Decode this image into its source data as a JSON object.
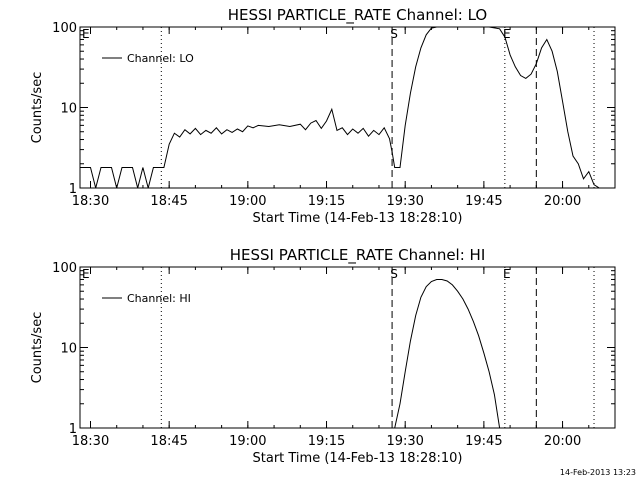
{
  "chart_data": [
    {
      "type": "line",
      "title": "HESSI PARTICLE_RATE Channel: LO",
      "xlabel": "Start Time (14-Feb-13 18:28:10)",
      "ylabel": "Counts/sec",
      "y_scale": "log",
      "xlim": [
        "18:28",
        "20:10"
      ],
      "ylim": [
        1,
        100
      ],
      "x_ticks": [
        "18:30",
        "18:45",
        "19:00",
        "19:15",
        "19:30",
        "19:45",
        "20:00"
      ],
      "y_ticks": [
        "1",
        "10",
        "100"
      ],
      "legend": "left-top",
      "series": [
        {
          "name": "Channel: LO",
          "color": "#000000",
          "points": [
            [
              "18:28",
              1.8
            ],
            [
              "18:30",
              1.8
            ],
            [
              "18:31",
              1.0
            ],
            [
              "18:32",
              1.8
            ],
            [
              "18:34",
              1.8
            ],
            [
              "18:35",
              1.0
            ],
            [
              "18:36",
              1.8
            ],
            [
              "18:38",
              1.8
            ],
            [
              "18:39",
              1.0
            ],
            [
              "18:40",
              1.8
            ],
            [
              "18:41",
              1.0
            ],
            [
              "18:42",
              1.8
            ],
            [
              "18:44",
              1.8
            ],
            [
              "18:45",
              3.5
            ],
            [
              "18:46",
              4.8
            ],
            [
              "18:47",
              4.3
            ],
            [
              "18:48",
              5.3
            ],
            [
              "18:49",
              4.7
            ],
            [
              "18:50",
              5.5
            ],
            [
              "18:51",
              4.6
            ],
            [
              "18:52",
              5.2
            ],
            [
              "18:53",
              4.8
            ],
            [
              "18:54",
              5.6
            ],
            [
              "18:55",
              4.7
            ],
            [
              "18:56",
              5.3
            ],
            [
              "18:57",
              4.9
            ],
            [
              "18:58",
              5.4
            ],
            [
              "18:59",
              5.0
            ],
            [
              "19:00",
              5.9
            ],
            [
              "19:01",
              5.6
            ],
            [
              "19:02",
              6.0
            ],
            [
              "19:04",
              5.8
            ],
            [
              "19:06",
              6.1
            ],
            [
              "19:08",
              5.8
            ],
            [
              "19:10",
              6.2
            ],
            [
              "19:11",
              5.3
            ],
            [
              "19:12",
              6.4
            ],
            [
              "19:13",
              6.9
            ],
            [
              "19:14",
              5.5
            ],
            [
              "19:15",
              6.8
            ],
            [
              "19:16",
              9.5
            ],
            [
              "19:17",
              5.2
            ],
            [
              "19:18",
              5.6
            ],
            [
              "19:19",
              4.6
            ],
            [
              "19:20",
              5.4
            ],
            [
              "19:21",
              4.8
            ],
            [
              "19:22",
              5.5
            ],
            [
              "19:23",
              4.4
            ],
            [
              "19:24",
              5.2
            ],
            [
              "19:25",
              4.6
            ],
            [
              "19:26",
              5.6
            ],
            [
              "19:27",
              4.1
            ],
            [
              "19:27.5",
              2.8
            ],
            [
              "19:28",
              1.8
            ],
            [
              "19:29",
              1.8
            ],
            [
              "19:30",
              6.0
            ],
            [
              "19:31",
              15.0
            ],
            [
              "19:32",
              32.0
            ],
            [
              "19:33",
              55.0
            ],
            [
              "19:34",
              80.0
            ],
            [
              "19:35",
              97.0
            ],
            [
              "19:36",
              105.0
            ],
            [
              "19:38",
              105.0
            ],
            [
              "19:40",
              103.0
            ],
            [
              "19:42",
              104.0
            ],
            [
              "19:44",
              102.0
            ],
            [
              "19:46",
              103.0
            ],
            [
              "19:48",
              95.0
            ],
            [
              "19:49",
              75.0
            ],
            [
              "19:50",
              45.0
            ],
            [
              "19:51",
              32.0
            ],
            [
              "19:52",
              25.0
            ],
            [
              "19:53",
              23.0
            ],
            [
              "19:54",
              26.0
            ],
            [
              "19:55",
              35.0
            ],
            [
              "19:56",
              55.0
            ],
            [
              "19:57",
              70.0
            ],
            [
              "19:58",
              50.0
            ],
            [
              "19:59",
              28.0
            ],
            [
              "20:00",
              12.0
            ],
            [
              "20:01",
              5.0
            ],
            [
              "20:02",
              2.5
            ],
            [
              "20:03",
              2.0
            ],
            [
              "20:04",
              1.3
            ],
            [
              "20:05",
              1.6
            ],
            [
              "20:06",
              1.1
            ],
            [
              "20:07",
              1.0
            ]
          ]
        }
      ],
      "event_markers": [
        {
          "time": "18:43.5",
          "style": "dotted"
        },
        {
          "time": "19:27.5",
          "style": "dashed",
          "label": "S"
        },
        {
          "time": "19:49",
          "style": "dotted",
          "label": "E"
        },
        {
          "time": "19:55",
          "style": "dashed"
        },
        {
          "time": "20:06",
          "style": "dotted"
        }
      ],
      "corner_label": "E"
    },
    {
      "type": "line",
      "title": "HESSI PARTICLE_RATE Channel: HI",
      "xlabel": "Start Time (14-Feb-13 18:28:10)",
      "ylabel": "Counts/sec",
      "y_scale": "log",
      "xlim": [
        "18:28",
        "20:10"
      ],
      "ylim": [
        1,
        100
      ],
      "x_ticks": [
        "18:30",
        "18:45",
        "19:00",
        "19:15",
        "19:30",
        "19:45",
        "20:00"
      ],
      "y_ticks": [
        "1",
        "10",
        "100"
      ],
      "legend": "left-top",
      "series": [
        {
          "name": "Channel: HI",
          "color": "#000000",
          "points": [
            [
              "19:28",
              1.0
            ],
            [
              "19:29",
              2.0
            ],
            [
              "19:30",
              5.0
            ],
            [
              "19:31",
              12.0
            ],
            [
              "19:32",
              25.0
            ],
            [
              "19:33",
              42.0
            ],
            [
              "19:34",
              57.0
            ],
            [
              "19:35",
              66.0
            ],
            [
              "19:36",
              70.0
            ],
            [
              "19:37",
              70.0
            ],
            [
              "19:38",
              67.0
            ],
            [
              "19:39",
              60.0
            ],
            [
              "19:40",
              50.0
            ],
            [
              "19:41",
              40.0
            ],
            [
              "19:42",
              30.0
            ],
            [
              "19:43",
              21.0
            ],
            [
              "19:44",
              14.0
            ],
            [
              "19:45",
              8.5
            ],
            [
              "19:46",
              5.0
            ],
            [
              "19:47",
              2.6
            ],
            [
              "19:48",
              1.0
            ]
          ]
        }
      ],
      "event_markers": [
        {
          "time": "18:43.5",
          "style": "dotted"
        },
        {
          "time": "19:27.5",
          "style": "dashed",
          "label": "S"
        },
        {
          "time": "19:49",
          "style": "dotted",
          "label": "E"
        },
        {
          "time": "19:55",
          "style": "dashed"
        },
        {
          "time": "20:06",
          "style": "dotted"
        }
      ],
      "corner_label": "E"
    }
  ],
  "footer": {
    "timestamp": "14-Feb-2013 13:23"
  }
}
